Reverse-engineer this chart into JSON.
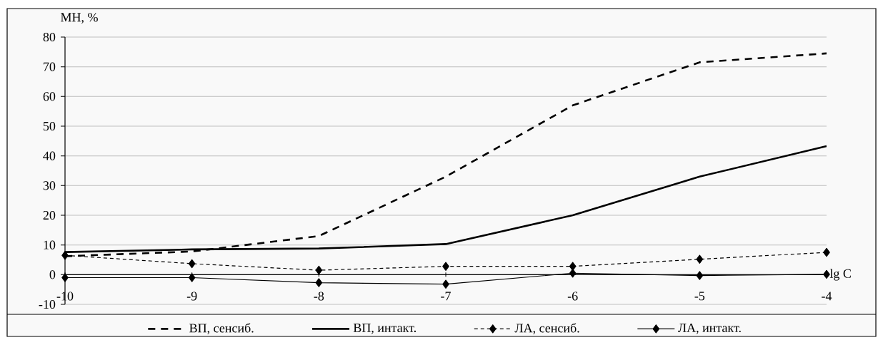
{
  "chart_data": {
    "type": "line",
    "xlabel": "lg C",
    "ylabel": "МН, %",
    "x": [
      -10,
      -9,
      -8,
      -7,
      -6,
      -5,
      -4
    ],
    "series": [
      {
        "name": "ВП, сенсиб.",
        "color": "#000000",
        "line_style": "dashed",
        "marker": "none",
        "values": [
          6.2,
          7.8,
          13,
          33,
          57,
          71.5,
          74.5
        ]
      },
      {
        "name": "ВП, интакт.",
        "color": "#000000",
        "line_style": "solid",
        "marker": "none",
        "values": [
          7.6,
          8.5,
          8.8,
          10.3,
          20,
          33,
          43.3
        ]
      },
      {
        "name": "ЛА, сенсиб.",
        "color": "#000000",
        "line_style": "dashed",
        "marker": "diamond",
        "values": [
          6.5,
          3.7,
          1.5,
          2.8,
          2.8,
          5.2,
          7.5
        ]
      },
      {
        "name": "ЛА, интакт.",
        "color": "#000000",
        "line_style": "solid",
        "marker": "diamond",
        "values": [
          -1,
          -1,
          -2.7,
          -3.2,
          0.5,
          -0.3,
          0.1
        ]
      }
    ],
    "xlim": [
      -10,
      -4
    ],
    "xticks": [
      -10,
      -9,
      -8,
      -7,
      -6,
      -5,
      -4
    ],
    "ylim": [
      -10,
      80
    ],
    "yticks": [
      -10,
      0,
      10,
      20,
      30,
      40,
      50,
      60,
      70,
      80
    ],
    "grid": "y",
    "legend": "bottom"
  }
}
